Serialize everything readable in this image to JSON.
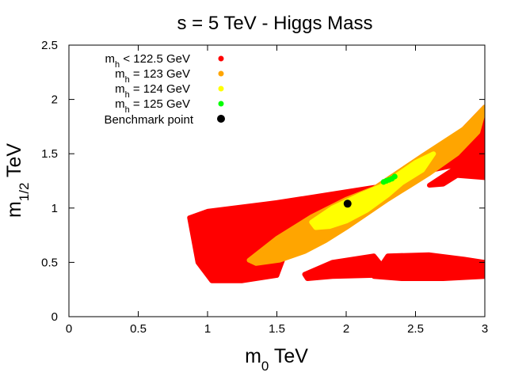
{
  "chart_data": {
    "type": "scatter",
    "title": "s = 5 TeV - Higgs Mass",
    "xlabel": {
      "main": "m",
      "sub": "0",
      "unit": " TeV"
    },
    "ylabel": {
      "main": "m",
      "sub": "1/2",
      "unit": " TeV"
    },
    "xlim": [
      0,
      3
    ],
    "ylim": [
      0,
      2.5
    ],
    "xticks": [
      0,
      0.5,
      1,
      1.5,
      2,
      2.5,
      3
    ],
    "xtick_labels": [
      "0",
      "0.5",
      "1",
      "1.5",
      "2",
      "2.5",
      "3"
    ],
    "yticks": [
      0,
      0.5,
      1,
      1.5,
      2,
      2.5
    ],
    "ytick_labels": [
      "0",
      "0.5",
      "1",
      "1.5",
      "2",
      "2.5"
    ],
    "legend_position": "top-left",
    "series": [
      {
        "name": "mh < 122.5 GeV",
        "label": {
          "main": "m",
          "sub": "h",
          "rest": " < 122.5 GeV"
        },
        "color": "#ff0000",
        "regions": [
          {
            "polygon": [
              [
                0.87,
                0.91
              ],
              [
                1.0,
                0.97
              ],
              [
                1.5,
                1.05
              ],
              [
                1.9,
                1.13
              ],
              [
                2.25,
                1.2
              ],
              [
                2.55,
                1.42
              ],
              [
                2.85,
                1.73
              ],
              [
                3.0,
                1.93
              ],
              [
                3.0,
                1.42
              ],
              [
                2.8,
                1.4
              ],
              [
                2.55,
                1.33
              ],
              [
                2.35,
                1.15
              ],
              [
                2.2,
                1.05
              ],
              [
                2.1,
                0.95
              ],
              [
                1.95,
                0.9
              ],
              [
                1.85,
                0.85
              ],
              [
                1.7,
                0.75
              ],
              [
                1.55,
                0.55
              ],
              [
                1.5,
                0.38
              ],
              [
                1.25,
                0.33
              ],
              [
                1.03,
                0.33
              ],
              [
                0.93,
                0.5
              ]
            ]
          },
          {
            "polygon": [
              [
                1.7,
                0.39
              ],
              [
                1.9,
                0.5
              ],
              [
                2.2,
                0.56
              ],
              [
                2.25,
                0.48
              ],
              [
                2.2,
                0.38
              ],
              [
                1.9,
                0.37
              ],
              [
                1.72,
                0.35
              ]
            ]
          },
          {
            "polygon": [
              [
                2.2,
                0.37
              ],
              [
                2.3,
                0.56
              ],
              [
                2.6,
                0.57
              ],
              [
                2.85,
                0.53
              ],
              [
                3.0,
                0.5
              ],
              [
                3.0,
                0.37
              ],
              [
                2.7,
                0.35
              ],
              [
                2.4,
                0.35
              ]
            ]
          },
          {
            "polygon": [
              [
                2.6,
                1.21
              ],
              [
                2.85,
                1.42
              ],
              [
                3.0,
                1.5
              ],
              [
                3.0,
                1.28
              ],
              [
                2.8,
                1.3
              ],
              [
                2.7,
                1.22
              ]
            ]
          }
        ]
      },
      {
        "name": "mh = 123 GeV",
        "label": {
          "main": "m",
          "sub": "h",
          "rest": " = 123 GeV"
        },
        "color": "#ffa500",
        "regions": [
          {
            "polygon": [
              [
                1.3,
                0.52
              ],
              [
                1.5,
                0.72
              ],
              [
                1.75,
                0.92
              ],
              [
                2.0,
                1.08
              ],
              [
                2.2,
                1.18
              ],
              [
                2.55,
                1.48
              ],
              [
                2.85,
                1.73
              ],
              [
                3.0,
                1.93
              ],
              [
                2.95,
                1.7
              ],
              [
                2.8,
                1.5
              ],
              [
                2.6,
                1.32
              ],
              [
                2.45,
                1.2
              ],
              [
                2.3,
                1.08
              ],
              [
                2.15,
                0.95
              ],
              [
                2.0,
                0.82
              ],
              [
                1.85,
                0.7
              ],
              [
                1.7,
                0.6
              ],
              [
                1.52,
                0.52
              ],
              [
                1.35,
                0.49
              ]
            ]
          }
        ]
      },
      {
        "name": "mh = 124 GeV",
        "label": {
          "main": "m",
          "sub": "h",
          "rest": " = 124 GeV"
        },
        "color": "#ffff00",
        "regions": [
          {
            "polygon": [
              [
                1.75,
                0.87
              ],
              [
                1.9,
                1.0
              ],
              [
                2.1,
                1.12
              ],
              [
                2.25,
                1.2
              ],
              [
                2.5,
                1.42
              ],
              [
                2.63,
                1.5
              ],
              [
                2.55,
                1.35
              ],
              [
                2.4,
                1.23
              ],
              [
                2.3,
                1.12
              ],
              [
                2.15,
                0.98
              ],
              [
                2.0,
                0.88
              ],
              [
                1.88,
                0.83
              ],
              [
                1.78,
                0.82
              ]
            ]
          }
        ]
      },
      {
        "name": "mh = 125 GeV",
        "label": {
          "main": "m",
          "sub": "h",
          "rest": " = 125 GeV"
        },
        "color": "#00ff00",
        "points": [
          [
            2.27,
            1.24
          ],
          [
            2.29,
            1.25
          ],
          [
            2.31,
            1.26
          ],
          [
            2.33,
            1.27
          ],
          [
            2.35,
            1.29
          ]
        ]
      },
      {
        "name": "Benchmark point",
        "label": {
          "main": "Benchmark point",
          "sub": "",
          "rest": ""
        },
        "color": "#000000",
        "points": [
          [
            2.01,
            1.04
          ]
        ]
      }
    ]
  }
}
